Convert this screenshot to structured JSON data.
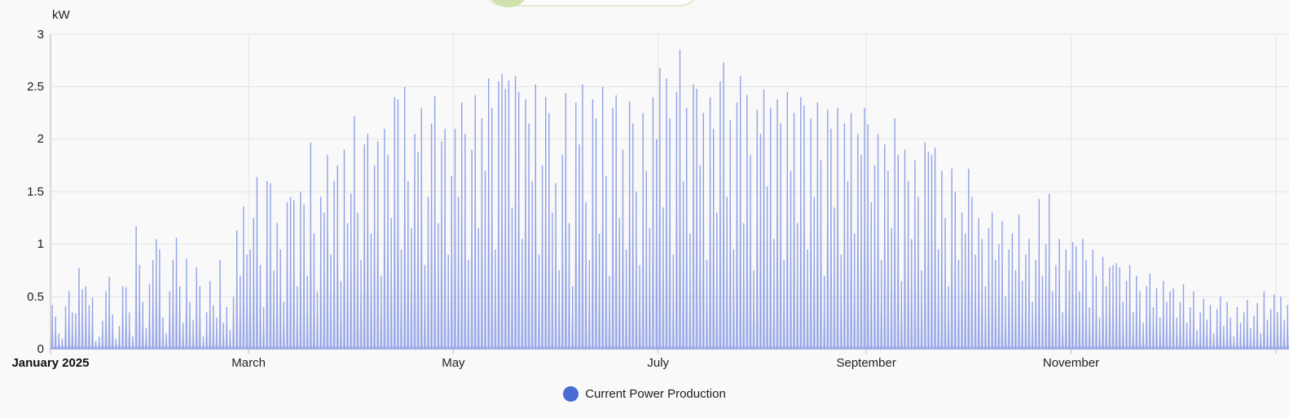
{
  "banner": {
    "dot_color": "#cfe2ad",
    "border_color": "#dfeccf",
    "background": "#fdfefc"
  },
  "legend": {
    "label": "Current Power Production",
    "dot_color": "#4a6bd2"
  },
  "chart_data": {
    "type": "line",
    "title": "",
    "xlabel": "",
    "ylabel": "kW",
    "unit": "kW",
    "ylim": [
      0,
      3
    ],
    "yticks": [
      0,
      0.5,
      1,
      1.5,
      2,
      2.5,
      3
    ],
    "grid": true,
    "legend_position": "bottom",
    "legend_entries": [
      "Current Power Production"
    ],
    "x_axis": {
      "start_label": "January 2025",
      "tick_labels": [
        "January 2025",
        "March",
        "May",
        "July",
        "September",
        "November"
      ],
      "tick_day_offsets": [
        0,
        59,
        120,
        181,
        243,
        304
      ],
      "gridline_day_offsets": [
        59,
        120,
        181,
        243,
        304,
        365
      ]
    },
    "series": [
      {
        "name": "Current Power Production",
        "color": "#8b9ce6",
        "points": "one spike per day, daily peak power in kW, Jan 1 2025 through Dec 31 2025",
        "daily_peak_kw": [
          0.42,
          0.31,
          0.15,
          0.1,
          0.41,
          0.55,
          0.35,
          0.34,
          0.77,
          0.57,
          0.6,
          0.42,
          0.49,
          0.08,
          0.12,
          0.27,
          0.55,
          0.69,
          0.33,
          0.1,
          0.22,
          0.6,
          0.59,
          0.35,
          0.12,
          1.17,
          0.8,
          0.45,
          0.2,
          0.62,
          0.85,
          1.05,
          0.95,
          0.3,
          0.15,
          0.55,
          0.85,
          1.06,
          0.6,
          0.25,
          0.86,
          0.45,
          0.28,
          0.78,
          0.6,
          0.12,
          0.35,
          0.65,
          0.42,
          0.3,
          0.85,
          0.25,
          0.4,
          0.18,
          0.5,
          1.13,
          0.7,
          1.36,
          0.9,
          0.95,
          1.25,
          1.64,
          0.8,
          0.4,
          1.6,
          1.58,
          0.75,
          1.2,
          0.95,
          0.45,
          1.4,
          1.45,
          1.42,
          0.6,
          1.5,
          1.38,
          0.7,
          1.97,
          1.1,
          0.55,
          1.45,
          1.3,
          1.85,
          0.9,
          1.6,
          1.75,
          0.65,
          1.9,
          1.2,
          1.48,
          2.22,
          1.3,
          0.85,
          1.95,
          2.05,
          1.1,
          1.75,
          1.98,
          0.7,
          2.1,
          1.85,
          1.25,
          2.4,
          2.38,
          0.95,
          2.5,
          1.6,
          1.15,
          2.05,
          1.88,
          2.3,
          0.8,
          1.45,
          2.15,
          2.41,
          1.2,
          1.98,
          2.1,
          0.9,
          1.65,
          2.1,
          1.45,
          2.35,
          2.05,
          0.85,
          1.9,
          2.42,
          1.15,
          2.2,
          1.7,
          2.58,
          2.3,
          0.95,
          2.55,
          2.62,
          2.48,
          2.56,
          1.35,
          2.6,
          2.45,
          1.05,
          2.38,
          2.15,
          1.6,
          2.52,
          0.9,
          1.75,
          2.4,
          2.25,
          1.3,
          1.58,
          0.75,
          1.85,
          2.44,
          1.2,
          0.6,
          2.35,
          1.95,
          2.52,
          1.4,
          0.85,
          2.38,
          2.2,
          1.1,
          2.5,
          1.65,
          0.7,
          2.3,
          2.42,
          1.25,
          1.9,
          0.95,
          2.36,
          2.15,
          1.5,
          0.8,
          2.25,
          1.7,
          1.15,
          2.4,
          2.0,
          2.68,
          1.35,
          2.58,
          2.2,
          0.9,
          2.45,
          2.85,
          1.6,
          2.3,
          1.1,
          2.52,
          2.48,
          1.75,
          2.25,
          0.85,
          2.4,
          2.1,
          1.3,
          2.55,
          2.73,
          1.45,
          2.18,
          0.95,
          2.35,
          2.6,
          1.2,
          2.42,
          1.85,
          0.75,
          2.28,
          2.05,
          2.47,
          1.55,
          2.3,
          1.05,
          2.38,
          2.15,
          0.85,
          2.45,
          1.7,
          2.25,
          1.2,
          2.4,
          2.32,
          0.95,
          2.2,
          1.45,
          2.35,
          1.8,
          0.7,
          2.28,
          2.1,
          1.35,
          2.3,
          0.9,
          2.15,
          1.6,
          2.25,
          1.1,
          2.05,
          1.85,
          2.3,
          2.14,
          1.4,
          1.75,
          2.05,
          0.85,
          1.95,
          1.7,
          1.15,
          2.2,
          1.85,
          0.65,
          1.9,
          1.6,
          1.05,
          1.8,
          1.45,
          0.75,
          1.97,
          1.88,
          1.85,
          1.92,
          0.95,
          1.7,
          1.25,
          0.6,
          1.72,
          1.5,
          0.85,
          1.3,
          1.1,
          1.72,
          1.45,
          0.9,
          1.25,
          1.05,
          0.6,
          1.15,
          1.3,
          0.85,
          1.0,
          1.22,
          0.5,
          0.95,
          1.1,
          0.75,
          1.28,
          0.65,
          0.9,
          1.05,
          0.45,
          0.85,
          1.43,
          0.7,
          1.0,
          1.48,
          0.55,
          0.8,
          1.05,
          0.35,
          0.95,
          0.75,
          1.02,
          0.98,
          0.55,
          1.05,
          0.85,
          0.4,
          0.95,
          0.7,
          0.3,
          0.88,
          0.6,
          0.78,
          0.8,
          0.82,
          0.78,
          0.45,
          0.65,
          0.8,
          0.35,
          0.7,
          0.55,
          0.25,
          0.6,
          0.72,
          0.4,
          0.58,
          0.3,
          0.65,
          0.45,
          0.55,
          0.58,
          0.3,
          0.45,
          0.62,
          0.25,
          0.4,
          0.55,
          0.18,
          0.35,
          0.48,
          0.28,
          0.42,
          0.15,
          0.38,
          0.5,
          0.22,
          0.45,
          0.3,
          0.12,
          0.4,
          0.25,
          0.35,
          0.47,
          0.2,
          0.32,
          0.44,
          0.15,
          0.55,
          0.28,
          0.38,
          0.52
        ],
        "edge_overflow_days_kw": [
          0.35,
          0.5,
          0.28,
          0.42
        ]
      }
    ]
  }
}
